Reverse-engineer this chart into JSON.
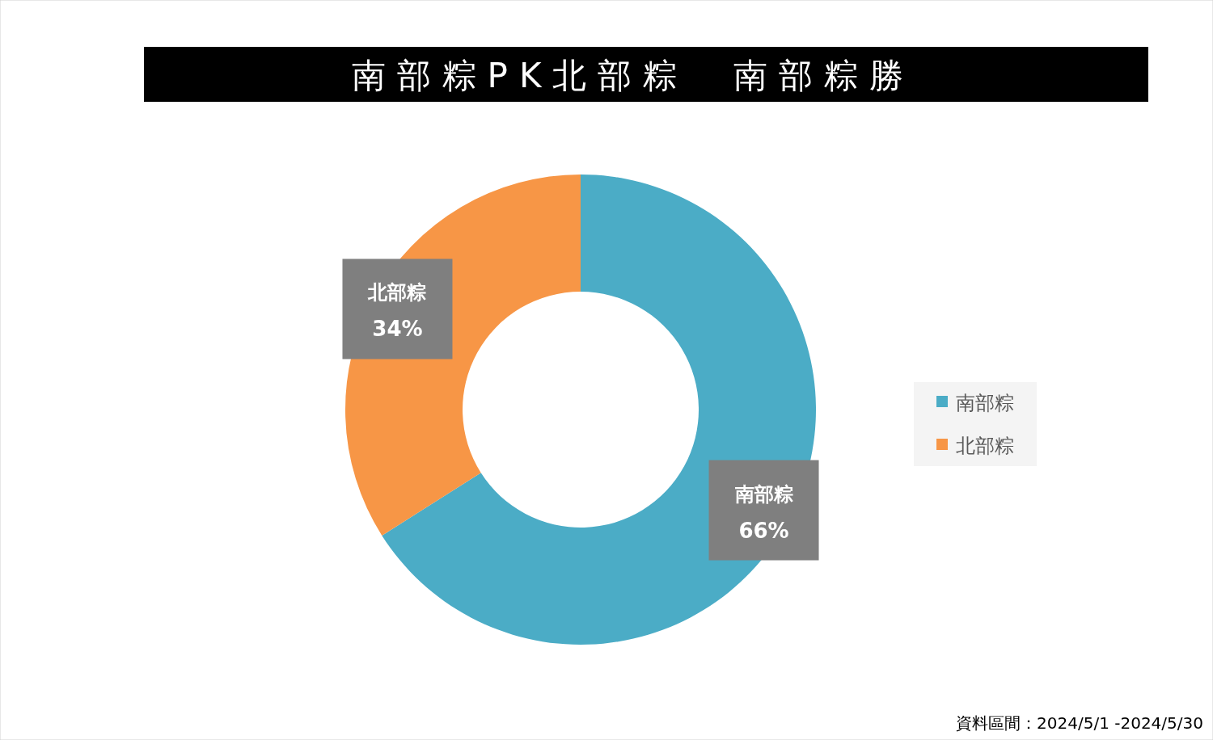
{
  "chart_data": {
    "type": "donut",
    "title": "南部粽PK北部粽　南部粽勝",
    "categories": [
      "南部粽",
      "北部粽"
    ],
    "values": [
      66,
      34
    ],
    "colors": [
      "#4bacc6",
      "#f79646"
    ],
    "value_labels": [
      "66%",
      "34%"
    ],
    "legend": "right",
    "annotations": [
      "資料區間：2024/5/1 -2024/5/30"
    ]
  }
}
